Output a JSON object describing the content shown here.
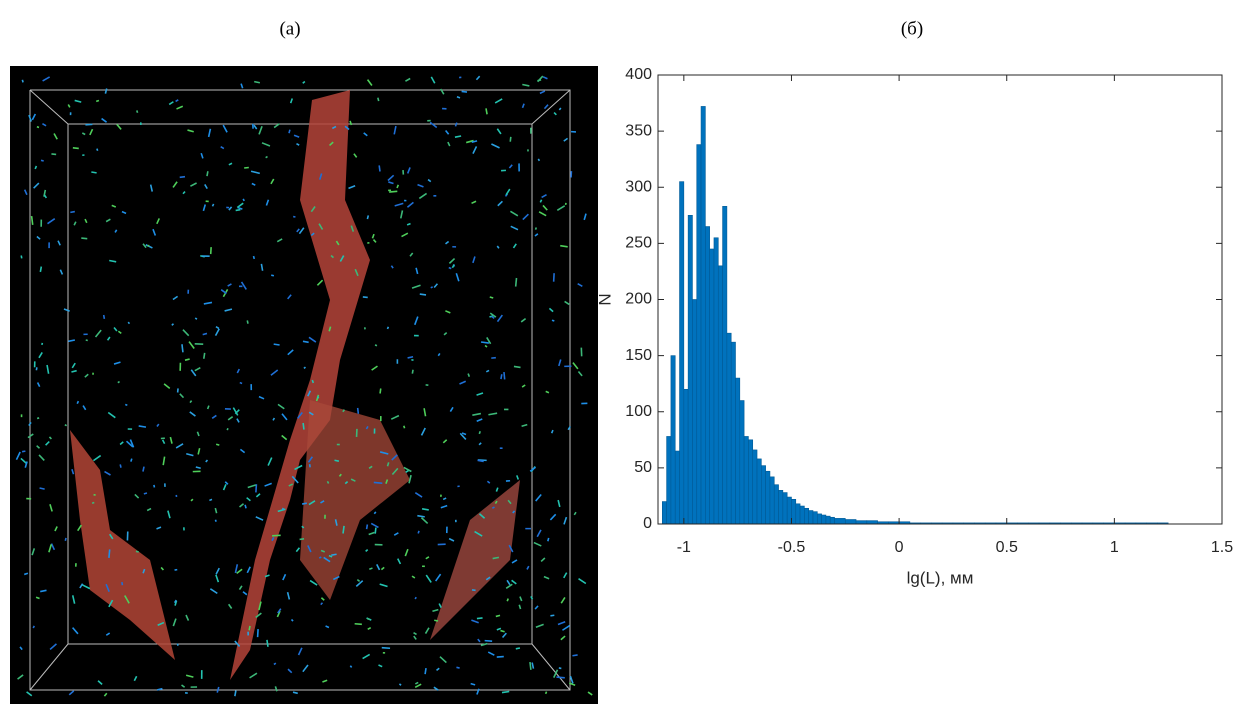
{
  "image_panel": {
    "label": "(а)"
  },
  "chart_data": {
    "type": "histogram",
    "panel_label": "(б)",
    "xlabel": "lg(L), мм",
    "ylabel": "N",
    "color": "#0072bd",
    "bins": [
      -1.1,
      -1.08,
      -1.06,
      -1.04,
      -1.02,
      -1.0,
      -0.98,
      -0.96,
      -0.94,
      -0.92,
      -0.9,
      -0.88,
      -0.86,
      -0.84,
      -0.82,
      -0.8,
      -0.78,
      -0.76,
      -0.74,
      -0.72,
      -0.7,
      -0.68,
      -0.66,
      -0.64,
      -0.62,
      -0.6,
      -0.58,
      -0.56,
      -0.54,
      -0.52,
      -0.5,
      -0.48,
      -0.46,
      -0.44,
      -0.42,
      -0.4,
      -0.38,
      -0.36,
      -0.34,
      -0.32,
      -0.3,
      -0.25,
      -0.2,
      -0.15,
      -0.1,
      -0.05,
      0,
      0.05,
      0.1,
      0.15,
      0.2,
      0.25,
      0.3,
      0.35,
      0.4,
      0.45,
      0.5,
      0.55,
      0.6,
      0.65,
      0.7,
      0.75,
      0.8,
      0.85,
      0.9,
      0.95,
      1.0,
      1.05,
      1.1,
      1.15,
      1.2,
      1.25,
      1.3,
      1.35
    ],
    "counts": [
      20,
      78,
      150,
      65,
      305,
      120,
      275,
      200,
      338,
      372,
      265,
      245,
      255,
      230,
      283,
      170,
      162,
      130,
      110,
      78,
      75,
      66,
      58,
      52,
      47,
      42,
      35,
      30,
      28,
      24,
      22,
      18,
      16,
      14,
      12,
      11,
      9,
      8,
      7,
      6,
      5,
      4,
      3,
      3,
      2,
      2,
      2,
      1,
      1,
      1,
      1,
      1,
      1,
      1,
      1,
      1,
      1,
      1,
      1,
      1,
      1,
      1,
      1,
      1,
      1,
      1,
      1,
      1,
      1,
      1,
      1,
      0,
      0
    ],
    "xlim": [
      -1.12,
      1.5
    ],
    "ylim": [
      0,
      400
    ],
    "xticks": [
      -1,
      -0.5,
      0,
      0.5,
      1,
      1.5
    ],
    "yticks": [
      0,
      50,
      100,
      150,
      200,
      250,
      300,
      350,
      400
    ]
  }
}
